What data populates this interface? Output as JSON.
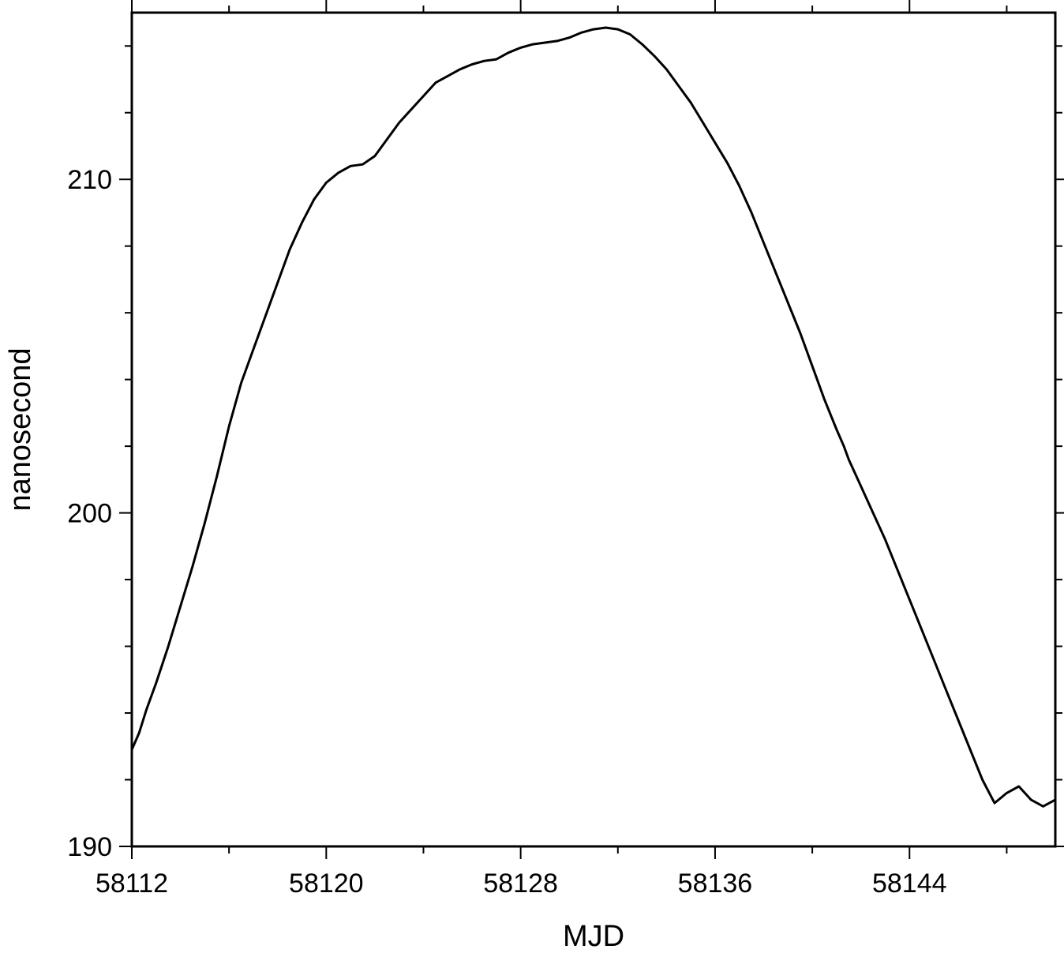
{
  "chart_data": {
    "type": "line",
    "title": "",
    "xlabel": "MJD",
    "ylabel": "nanosecond",
    "xlim": [
      58112,
      58150
    ],
    "ylim": [
      190,
      215
    ],
    "x_ticks": [
      58112,
      58120,
      58128,
      58136,
      58144
    ],
    "y_ticks": [
      190,
      200,
      210
    ],
    "grid": false,
    "line_color": "#000000",
    "series": [
      {
        "x": [
          58112,
          58112.3,
          58112.6,
          58113,
          58113.5,
          58114,
          58114.5,
          58115,
          58115.5,
          58116,
          58116.5,
          58117,
          58117.5,
          58118,
          58118.5,
          58119,
          58119.5,
          58120,
          58120.5,
          58121,
          58121.5,
          58122,
          58122.5,
          58123,
          58123.5,
          58124,
          58124.5,
          58125,
          58125.5,
          58126,
          58126.5,
          58127,
          58127.5,
          58128,
          58128.5,
          58129,
          58129.5,
          58130,
          58130.5,
          58131,
          58131.5,
          58132,
          58132.5,
          58133,
          58133.5,
          58134,
          58134.5,
          58135,
          58135.5,
          58136,
          58136.5,
          58137,
          58137.5,
          58138,
          58138.5,
          58139,
          58139.5,
          58140,
          58140.5,
          58141,
          58141.3,
          58141.5,
          58142,
          58142.5,
          58143,
          58143.5,
          58144,
          58144.5,
          58145,
          58145.5,
          58146,
          58146.5,
          58147,
          58147.5,
          58148,
          58148.5,
          58149,
          58149.5,
          58150
        ],
        "y": [
          192.9,
          193.4,
          194.1,
          194.9,
          196.0,
          197.2,
          198.4,
          199.7,
          201.1,
          202.6,
          203.9,
          204.9,
          205.9,
          206.9,
          207.9,
          208.7,
          209.4,
          209.9,
          210.2,
          210.4,
          210.45,
          210.7,
          211.2,
          211.7,
          212.1,
          212.5,
          212.9,
          213.1,
          213.3,
          213.45,
          213.55,
          213.6,
          213.8,
          213.95,
          214.05,
          214.1,
          214.15,
          214.25,
          214.4,
          214.5,
          214.55,
          214.5,
          214.35,
          214.05,
          213.7,
          213.3,
          212.8,
          212.3,
          211.7,
          211.1,
          210.5,
          209.8,
          209.0,
          208.1,
          207.2,
          206.3,
          205.4,
          204.4,
          203.4,
          202.5,
          202.0,
          201.6,
          200.8,
          200.0,
          199.2,
          198.3,
          197.4,
          196.5,
          195.6,
          194.7,
          193.8,
          192.9,
          192.0,
          191.3,
          191.6,
          191.8,
          191.4,
          191.2,
          191.4
        ]
      }
    ]
  }
}
